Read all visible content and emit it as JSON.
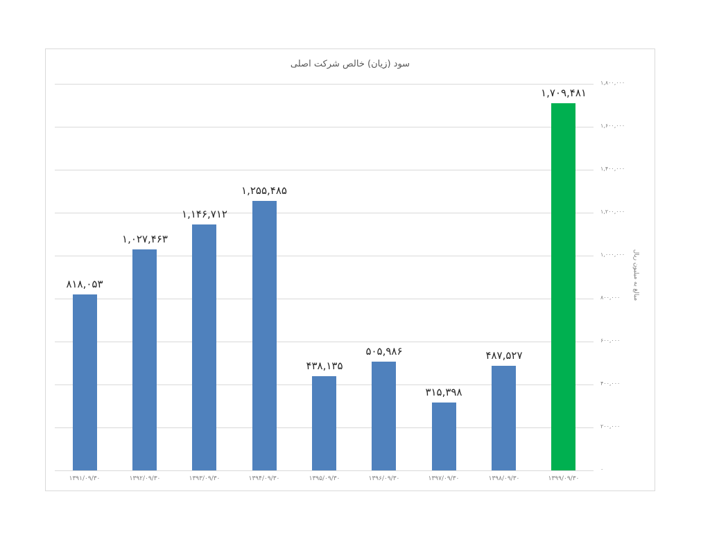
{
  "chart_data": {
    "type": "bar",
    "title": "سود (زیان) خالص شرکت اصلی",
    "xlabel": "",
    "ylabel": "مبالغ به میلیون ریال",
    "ylim": [
      0,
      1800000
    ],
    "y_ticks": [
      0,
      200000,
      400000,
      600000,
      800000,
      1000000,
      1200000,
      1400000,
      1600000,
      1800000
    ],
    "y_tick_labels": [
      "۰",
      "۲۰۰,۰۰۰",
      "۴۰۰,۰۰۰",
      "۶۰۰,۰۰۰",
      "۸۰۰,۰۰۰",
      "۱,۰۰۰,۰۰۰",
      "۱,۲۰۰,۰۰۰",
      "۱,۴۰۰,۰۰۰",
      "۱,۶۰۰,۰۰۰",
      "۱,۸۰۰,۰۰۰"
    ],
    "y_axis_position": "right",
    "grid": true,
    "legend": "none",
    "categories": [
      "۱۳۹۱/۰۹/۳۰",
      "۱۳۹۲/۰۹/۳۰",
      "۱۳۹۳/۰۹/۳۰",
      "۱۳۹۴/۰۹/۳۰",
      "۱۳۹۵/۰۹/۳۰",
      "۱۳۹۶/۰۹/۳۰",
      "۱۳۹۷/۰۹/۳۰",
      "۱۳۹۸/۰۹/۳۰",
      "۱۳۹۹/۰۹/۳۰"
    ],
    "values": [
      818053,
      1027463,
      1146712,
      1255485,
      438135,
      505986,
      315398,
      487527,
      1709481
    ],
    "value_labels": [
      "۸۱۸,۰۵۳",
      "۱,۰۲۷,۴۶۳",
      "۱,۱۴۶,۷۱۲",
      "۱,۲۵۵,۴۸۵",
      "۴۳۸,۱۳۵",
      "۵۰۵,۹۸۶",
      "۳۱۵,۳۹۸",
      "۴۸۷,۵۲۷",
      "۱,۷۰۹,۴۸۱"
    ],
    "colors": [
      "#4f81bd",
      "#4f81bd",
      "#4f81bd",
      "#4f81bd",
      "#4f81bd",
      "#4f81bd",
      "#4f81bd",
      "#4f81bd",
      "#00b050"
    ]
  }
}
